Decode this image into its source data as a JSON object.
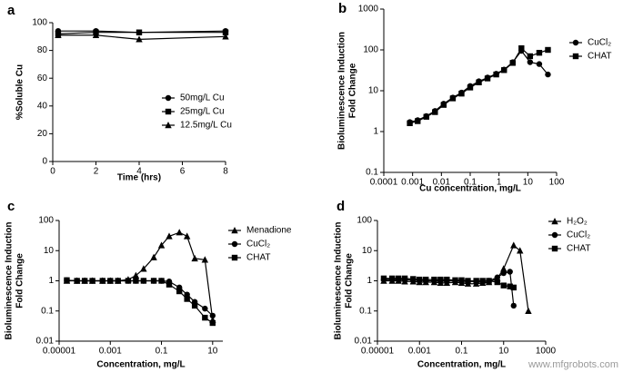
{
  "chart_data": [
    {
      "type": "line",
      "panel": "a",
      "ylabel": [
        "%Soluble Cu"
      ],
      "xlabel": "Time (hrs)",
      "x": [
        0.25,
        2,
        4,
        8
      ],
      "xlim": [
        0,
        8
      ],
      "xticks": [
        0,
        2,
        4,
        6,
        8
      ],
      "ylim": [
        0,
        100
      ],
      "yticks": [
        0,
        20,
        40,
        60,
        80,
        100
      ],
      "log_x": false,
      "log_y": false,
      "series": [
        {
          "name": "50mg/L Cu",
          "marker": "circle",
          "color": "#000000",
          "values": [
            94,
            94,
            93,
            94
          ]
        },
        {
          "name": "25mg/L Cu",
          "marker": "square",
          "color": "#000000",
          "values": [
            92,
            93,
            93,
            93
          ]
        },
        {
          "name": "12.5mg/L Cu",
          "marker": "triangle",
          "color": "#000000",
          "values": [
            91,
            91,
            88,
            90
          ]
        }
      ]
    },
    {
      "type": "line",
      "panel": "b",
      "ylabel": [
        "Bioluminescence Induction",
        "Fold Change"
      ],
      "xlabel": "Cu  concentration, mg/L",
      "xlim": [
        0.0001,
        100
      ],
      "xticks": [
        0.0001,
        0.001,
        0.01,
        0.1,
        1,
        10,
        100
      ],
      "ylim": [
        0.1,
        1000
      ],
      "yticks": [
        0.1,
        1,
        10,
        100,
        1000
      ],
      "log_x": true,
      "log_y": true,
      "series": [
        {
          "name": "CuCl₂",
          "marker": "circle",
          "color": "#000000",
          "x": [
            0.0008,
            0.0015,
            0.003,
            0.006,
            0.012,
            0.025,
            0.05,
            0.1,
            0.2,
            0.4,
            0.8,
            1.5,
            3,
            6,
            12,
            25,
            50
          ],
          "values": [
            1.7,
            1.9,
            2.4,
            3.2,
            4.8,
            6.8,
            9,
            13,
            17,
            21,
            26,
            33,
            50,
            95,
            50,
            45,
            25
          ]
        },
        {
          "name": "CHAT",
          "marker": "square",
          "color": "#000000",
          "x": [
            0.0008,
            0.0015,
            0.003,
            0.006,
            0.012,
            0.025,
            0.05,
            0.1,
            0.2,
            0.4,
            0.8,
            1.5,
            3,
            6,
            12,
            25,
            50
          ],
          "values": [
            1.6,
            1.8,
            2.3,
            3.0,
            4.5,
            6.5,
            8.5,
            12,
            16,
            20,
            25,
            32,
            48,
            110,
            70,
            85,
            100
          ]
        }
      ]
    },
    {
      "type": "line",
      "panel": "c",
      "ylabel": [
        "Bioluminescence Induction",
        "Fold Change"
      ],
      "xlabel": "Concentration, mg/L",
      "xlim": [
        1e-05,
        25
      ],
      "xticks": [
        1e-05,
        0.001,
        0.1,
        10
      ],
      "ylim": [
        0.01,
        100
      ],
      "yticks": [
        0.01,
        0.1,
        1,
        10,
        100
      ],
      "log_x": true,
      "log_y": true,
      "series": [
        {
          "name": "Menadione",
          "marker": "triangle",
          "color": "#000000",
          "x": [
            2e-05,
            5e-05,
            0.0001,
            0.0002,
            0.0005,
            0.001,
            0.002,
            0.005,
            0.01,
            0.02,
            0.05,
            0.1,
            0.2,
            0.5,
            1,
            2,
            5,
            10
          ],
          "values": [
            1,
            1,
            1,
            1,
            1,
            1,
            1,
            1.1,
            1.5,
            2.5,
            6,
            15,
            30,
            40,
            30,
            5.5,
            5,
            0.05
          ]
        },
        {
          "name": "CuCl₂",
          "marker": "circle",
          "color": "#000000",
          "x": [
            2e-05,
            5e-05,
            0.0001,
            0.0002,
            0.0005,
            0.001,
            0.002,
            0.005,
            0.01,
            0.02,
            0.05,
            0.1,
            0.2,
            0.5,
            1,
            2,
            5,
            10
          ],
          "values": [
            1.05,
            1,
            1,
            1,
            1,
            1,
            1,
            1,
            1,
            1,
            1,
            1,
            0.95,
            0.6,
            0.35,
            0.2,
            0.12,
            0.07
          ]
        },
        {
          "name": "CHAT",
          "marker": "square",
          "color": "#000000",
          "x": [
            2e-05,
            5e-05,
            0.0001,
            0.0002,
            0.0005,
            0.001,
            0.002,
            0.005,
            0.01,
            0.02,
            0.05,
            0.1,
            0.2,
            0.5,
            1,
            2,
            5,
            10
          ],
          "values": [
            1.05,
            1,
            1,
            1,
            1,
            1,
            1,
            1,
            1,
            1,
            1,
            1,
            0.75,
            0.45,
            0.25,
            0.15,
            0.06,
            0.04
          ]
        }
      ]
    },
    {
      "type": "line",
      "panel": "d",
      "ylabel": [
        "Bioluminescence Induction",
        "Fold Change"
      ],
      "xlabel": "Concentration, mg/L",
      "xlim": [
        1e-05,
        1000
      ],
      "xticks": [
        1e-05,
        0.001,
        0.1,
        10,
        1000
      ],
      "ylim": [
        0.01,
        100
      ],
      "yticks": [
        0.01,
        0.1,
        1,
        10,
        100
      ],
      "log_x": true,
      "log_y": true,
      "series": [
        {
          "name": "H₂O₂",
          "marker": "triangle",
          "color": "#000000",
          "x": [
            2e-05,
            5e-05,
            0.0001,
            0.0002,
            0.0005,
            0.001,
            0.002,
            0.005,
            0.01,
            0.02,
            0.05,
            0.1,
            0.2,
            0.5,
            1,
            2,
            5,
            10,
            30,
            60,
            150
          ],
          "values": [
            1,
            1,
            1,
            0.95,
            0.95,
            0.9,
            0.9,
            0.9,
            0.85,
            0.85,
            0.9,
            0.85,
            0.8,
            0.8,
            0.85,
            0.9,
            1.2,
            2.5,
            15,
            10,
            0.1
          ]
        },
        {
          "name": "CuCl₂",
          "marker": "circle",
          "color": "#000000",
          "x": [
            2e-05,
            5e-05,
            0.0001,
            0.0002,
            0.0005,
            0.001,
            0.002,
            0.005,
            0.01,
            0.02,
            0.05,
            0.1,
            0.2,
            0.5,
            1,
            2,
            5,
            10,
            20,
            30
          ],
          "values": [
            1.1,
            1.1,
            1.1,
            1.1,
            1.05,
            1.05,
            1,
            1,
            1,
            1,
            1,
            1,
            0.95,
            0.95,
            0.95,
            1,
            1.3,
            1.8,
            2,
            0.15
          ]
        },
        {
          "name": "CHAT",
          "marker": "square",
          "color": "#000000",
          "x": [
            2e-05,
            5e-05,
            0.0001,
            0.0002,
            0.0005,
            0.001,
            0.002,
            0.005,
            0.01,
            0.02,
            0.05,
            0.1,
            0.2,
            0.5,
            1,
            2,
            5,
            10,
            20,
            30
          ],
          "values": [
            1.2,
            1.2,
            1.2,
            1.2,
            1.15,
            1.1,
            1.1,
            1.1,
            1.1,
            1.1,
            1.05,
            1.05,
            1,
            1,
            1,
            1,
            0.9,
            0.7,
            0.65,
            0.6
          ]
        }
      ]
    }
  ],
  "watermark": "www.mfgrobots.com"
}
